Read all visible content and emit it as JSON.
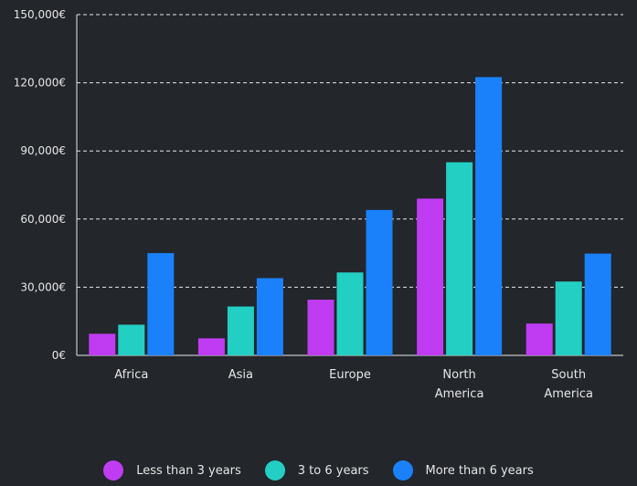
{
  "chart_data": {
    "type": "bar",
    "categories": [
      [
        "Africa"
      ],
      [
        "Asia"
      ],
      [
        "Europe"
      ],
      [
        "North",
        "America"
      ],
      [
        "South",
        "America"
      ]
    ],
    "series": [
      {
        "name": "Less than 3 years",
        "color": "#c03cf2",
        "values": [
          9500,
          7500,
          24500,
          69000,
          14000
        ]
      },
      {
        "name": "3 to 6 years",
        "color": "#23cfc3",
        "values": [
          13500,
          21500,
          36500,
          85000,
          32500
        ]
      },
      {
        "name": "More than 6 years",
        "color": "#1a81fb",
        "values": [
          45000,
          34000,
          64000,
          122500,
          44800
        ]
      }
    ],
    "yticks": [
      "0€",
      "30,000€",
      "60,000€",
      "90,000€",
      "120,000€",
      "150,000€"
    ],
    "ylim": [
      0,
      150000
    ],
    "grid": true,
    "legend_position": "bottom"
  }
}
